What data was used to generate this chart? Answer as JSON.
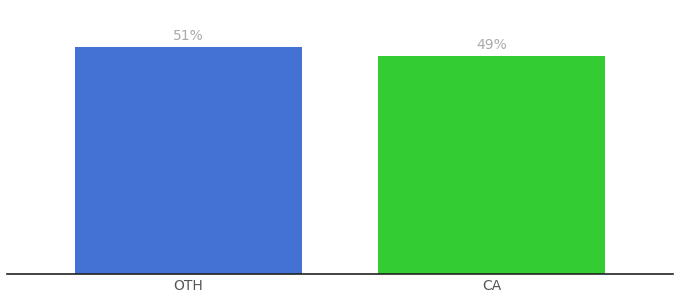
{
  "categories": [
    "OTH",
    "CA"
  ],
  "values": [
    51,
    49
  ],
  "bar_colors": [
    "#4472d4",
    "#33cc33"
  ],
  "value_labels": [
    "51%",
    "49%"
  ],
  "ylim": [
    0,
    60
  ],
  "bar_width": 0.75,
  "label_fontsize": 10,
  "tick_fontsize": 10,
  "label_color": "#aaaaaa",
  "background_color": "#ffffff",
  "axis_line_color": "#222222"
}
